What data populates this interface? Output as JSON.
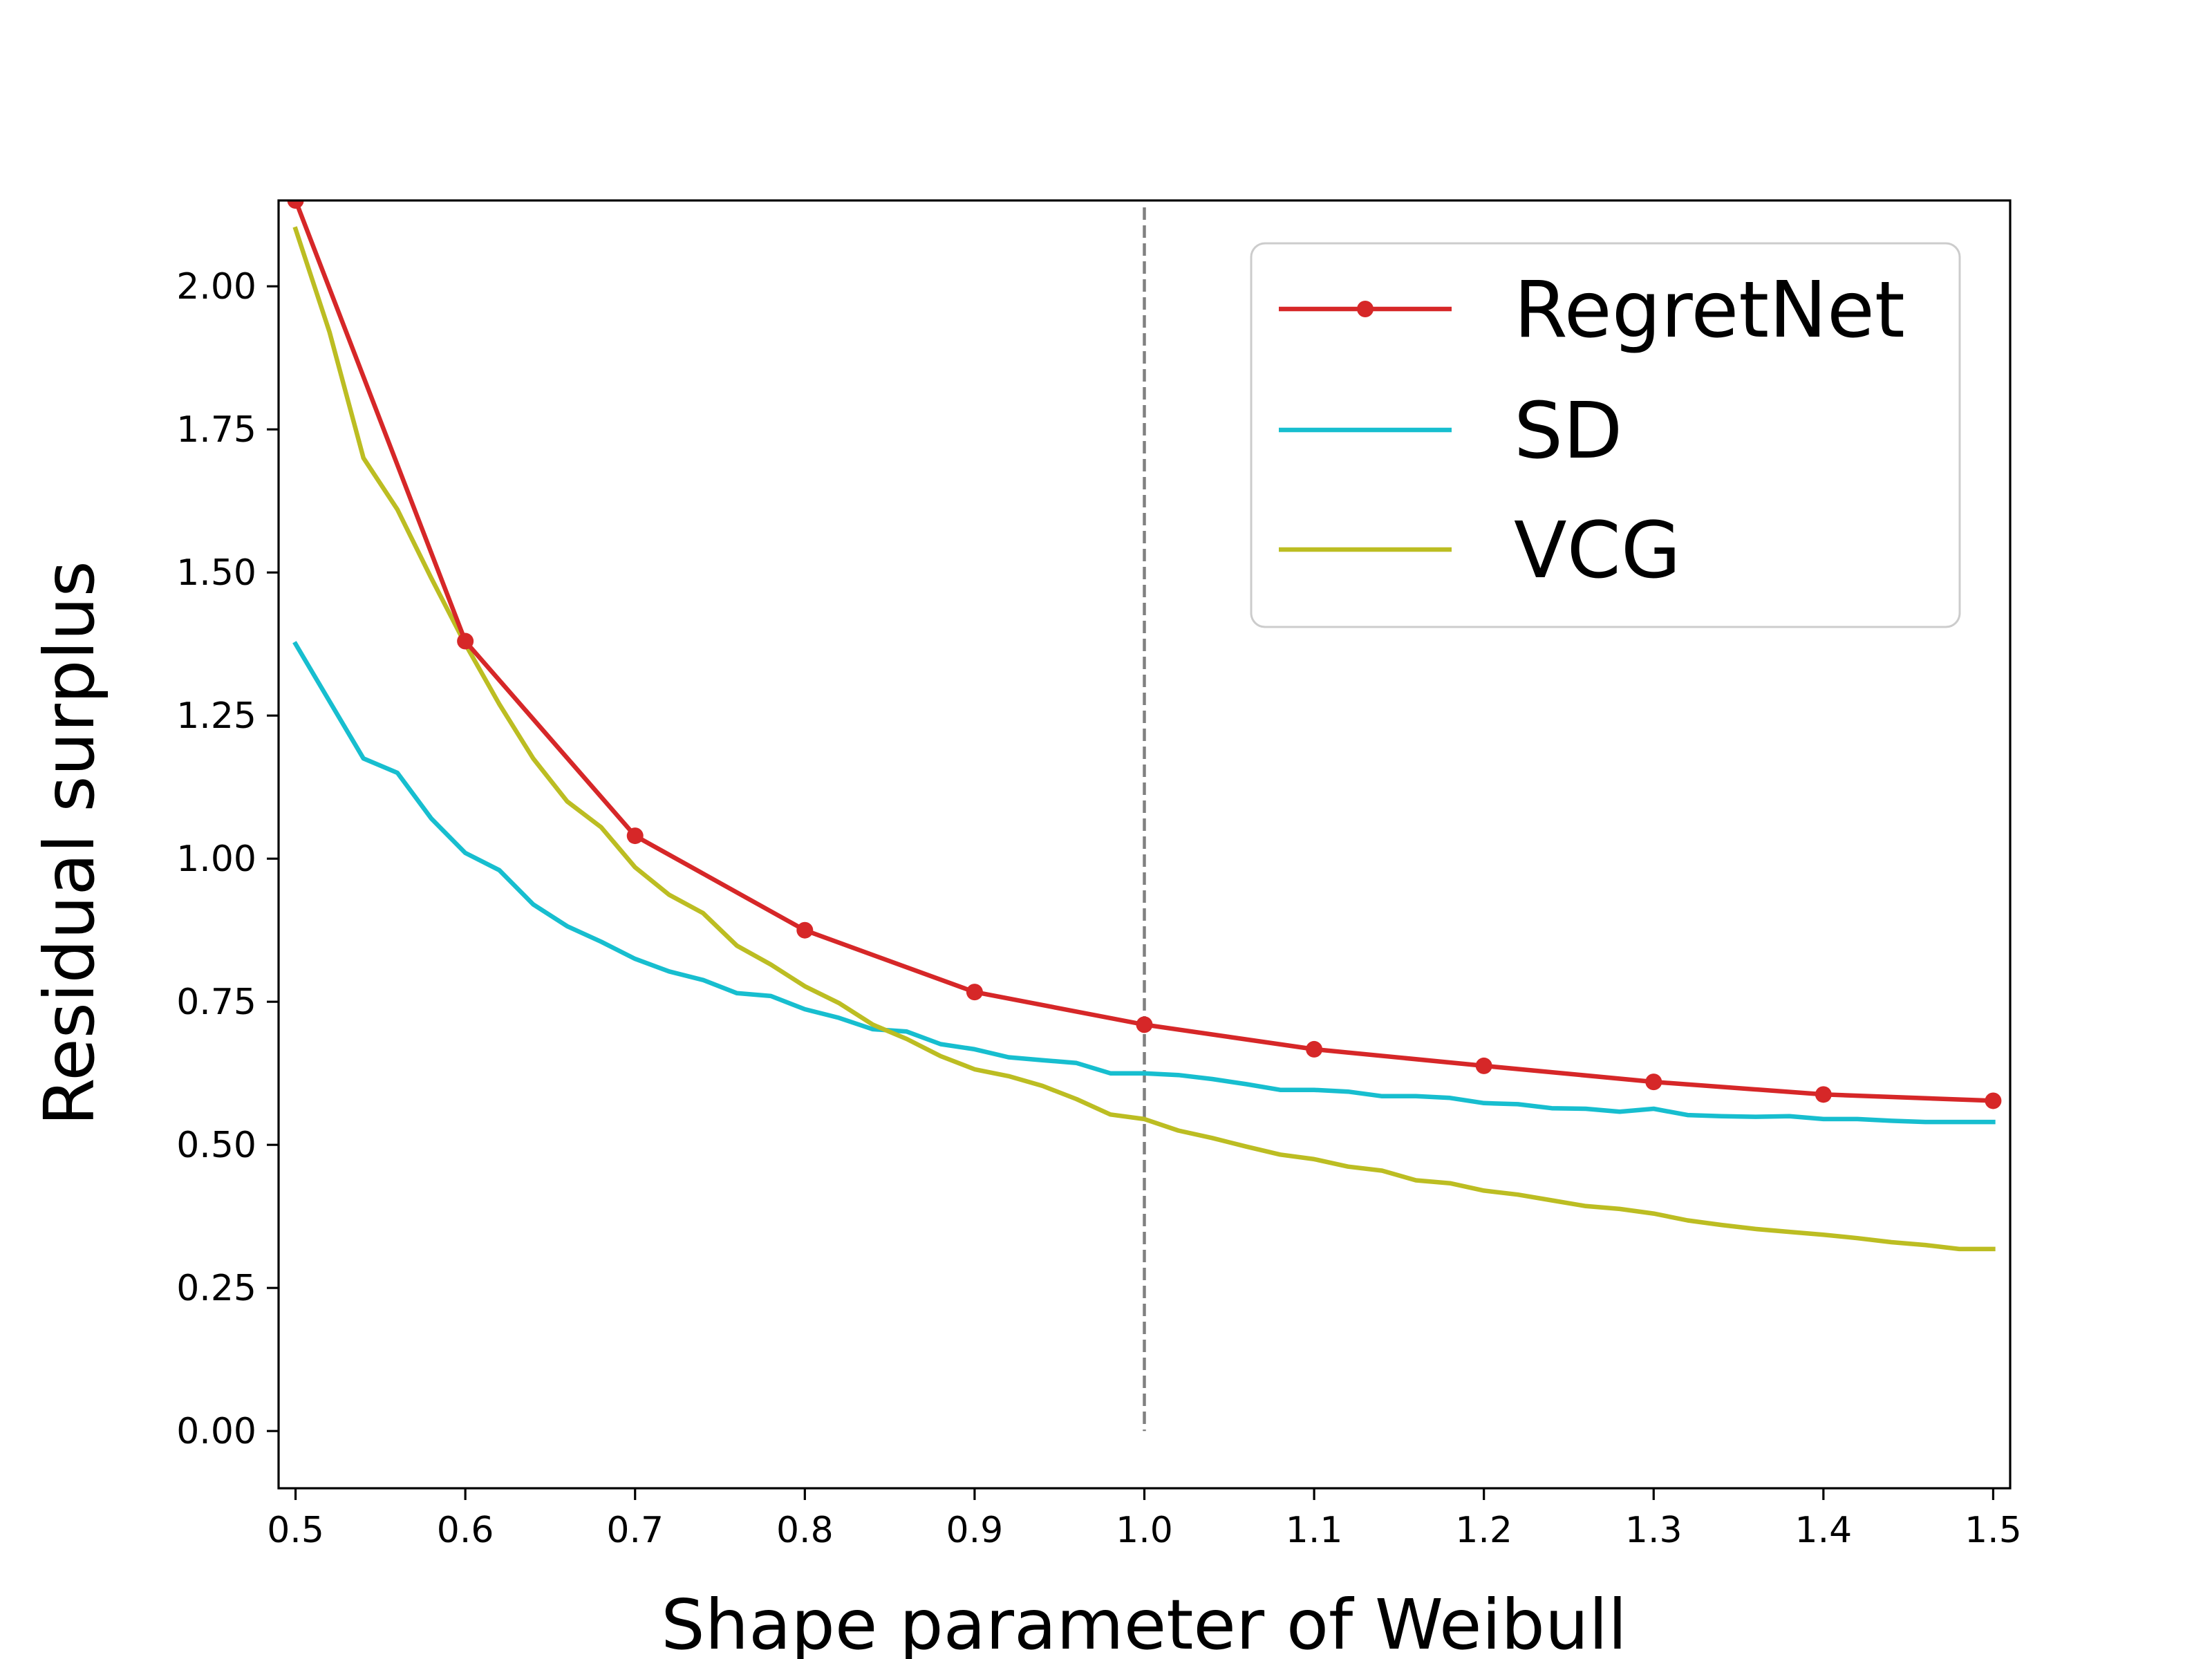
{
  "chart_data": {
    "type": "line",
    "title": "",
    "xlabel": "Shape parameter of Weibull",
    "ylabel": "Residual surplus",
    "xlim": [
      0.49,
      1.51
    ],
    "ylim": [
      -0.1,
      2.15
    ],
    "xticks": [
      0.5,
      0.6,
      0.7,
      0.8,
      0.9,
      1.0,
      1.1,
      1.2,
      1.3,
      1.4,
      1.5
    ],
    "xtick_labels": [
      "0.5",
      "0.6",
      "0.7",
      "0.8",
      "0.9",
      "1.0",
      "1.1",
      "1.2",
      "1.3",
      "1.4",
      "1.5"
    ],
    "yticks": [
      0.0,
      0.25,
      0.5,
      0.75,
      1.0,
      1.25,
      1.5,
      1.75,
      2.0
    ],
    "ytick_labels": [
      "0.00",
      "0.25",
      "0.50",
      "0.75",
      "1.00",
      "1.25",
      "1.50",
      "1.75",
      "2.00"
    ],
    "vline": {
      "x": 1.0,
      "style": "dashed",
      "color": "#808080"
    },
    "legend": {
      "location": "upper right"
    },
    "series": [
      {
        "name": "RegretNet",
        "color": "#d62728",
        "markers": true,
        "x": [
          0.5,
          0.6,
          0.7,
          0.8,
          0.9,
          1.0,
          1.1,
          1.2,
          1.3,
          1.4,
          1.5
        ],
        "y": [
          2.15,
          1.38,
          1.04,
          0.875,
          0.767,
          0.71,
          0.667,
          0.638,
          0.61,
          0.588,
          0.577
        ]
      },
      {
        "name": "SD",
        "color": "#17becf",
        "markers": false,
        "x": [
          0.5,
          0.52,
          0.54,
          0.56,
          0.58,
          0.6,
          0.62,
          0.64,
          0.66,
          0.68,
          0.7,
          0.72,
          0.74,
          0.76,
          0.78,
          0.8,
          0.82,
          0.84,
          0.86,
          0.88,
          0.9,
          0.92,
          0.94,
          0.96,
          0.98,
          1.0,
          1.02,
          1.04,
          1.06,
          1.08,
          1.1,
          1.12,
          1.14,
          1.16,
          1.18,
          1.2,
          1.22,
          1.24,
          1.26,
          1.28,
          1.3,
          1.32,
          1.34,
          1.36,
          1.38,
          1.4,
          1.42,
          1.44,
          1.46,
          1.48,
          1.5
        ],
        "y": [
          1.375,
          1.275,
          1.175,
          1.15,
          1.07,
          1.01,
          0.98,
          0.92,
          0.882,
          0.855,
          0.825,
          0.803,
          0.788,
          0.765,
          0.76,
          0.737,
          0.722,
          0.702,
          0.698,
          0.676,
          0.667,
          0.653,
          0.648,
          0.643,
          0.625,
          0.625,
          0.622,
          0.615,
          0.606,
          0.596,
          0.596,
          0.593,
          0.585,
          0.585,
          0.582,
          0.573,
          0.571,
          0.564,
          0.563,
          0.558,
          0.563,
          0.552,
          0.55,
          0.549,
          0.55,
          0.545,
          0.545,
          0.542,
          0.54,
          0.54,
          0.54
        ]
      },
      {
        "name": "VCG",
        "color": "#bcbd22",
        "markers": false,
        "x": [
          0.5,
          0.52,
          0.54,
          0.56,
          0.58,
          0.6,
          0.62,
          0.64,
          0.66,
          0.68,
          0.7,
          0.72,
          0.74,
          0.76,
          0.78,
          0.8,
          0.82,
          0.84,
          0.86,
          0.88,
          0.9,
          0.92,
          0.94,
          0.96,
          0.98,
          1.0,
          1.02,
          1.04,
          1.06,
          1.08,
          1.1,
          1.12,
          1.14,
          1.16,
          1.18,
          1.2,
          1.22,
          1.24,
          1.26,
          1.28,
          1.3,
          1.32,
          1.34,
          1.36,
          1.38,
          1.4,
          1.42,
          1.44,
          1.46,
          1.48,
          1.5
        ],
        "y": [
          2.1,
          1.92,
          1.7,
          1.61,
          1.49,
          1.375,
          1.27,
          1.175,
          1.1,
          1.055,
          0.985,
          0.937,
          0.905,
          0.848,
          0.815,
          0.777,
          0.748,
          0.71,
          0.685,
          0.655,
          0.632,
          0.62,
          0.603,
          0.58,
          0.553,
          0.545,
          0.525,
          0.512,
          0.497,
          0.483,
          0.475,
          0.462,
          0.455,
          0.438,
          0.433,
          0.42,
          0.413,
          0.403,
          0.393,
          0.388,
          0.38,
          0.368,
          0.36,
          0.353,
          0.348,
          0.343,
          0.337,
          0.33,
          0.325,
          0.318,
          0.318
        ]
      }
    ]
  }
}
